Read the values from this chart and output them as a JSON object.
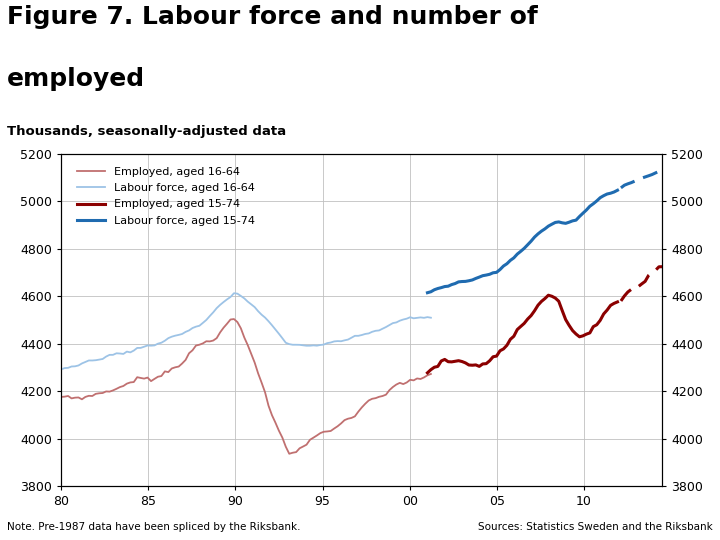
{
  "title_line1": "Figure 7. Labour force and number of",
  "title_line2": "employed",
  "subtitle": "Thousands, seasonally-adjusted data",
  "note": "Note. Pre-1987 data have been spliced by the Riksbank.",
  "source": "Sources: Statistics Sweden and the Riksbank",
  "ylim": [
    3800,
    5200
  ],
  "yticks": [
    3800,
    4000,
    4200,
    4400,
    4600,
    4800,
    5000,
    5200
  ],
  "xlim": [
    1980,
    2014.5
  ],
  "xticks": [
    1980,
    1985,
    1990,
    1995,
    2000,
    2005,
    2010
  ],
  "xticklabels": [
    "80",
    "85",
    "90",
    "95",
    "00",
    "05",
    "10"
  ],
  "color_emp1664": "#c07070",
  "color_lf1664": "#9dc3e6",
  "color_emp1574": "#8b0000",
  "color_lf1574": "#1f6bb0",
  "background_color": "#ffffff",
  "grid_color": "#c0c0c0",
  "logo_color": "#1f4e79",
  "footer_bar_color": "#1f4e79",
  "legend_labels": [
    "Employed, aged 16-64",
    "Labour force, aged 16-64",
    "Employed, aged 15-74",
    "Labour force, aged 15-74"
  ]
}
